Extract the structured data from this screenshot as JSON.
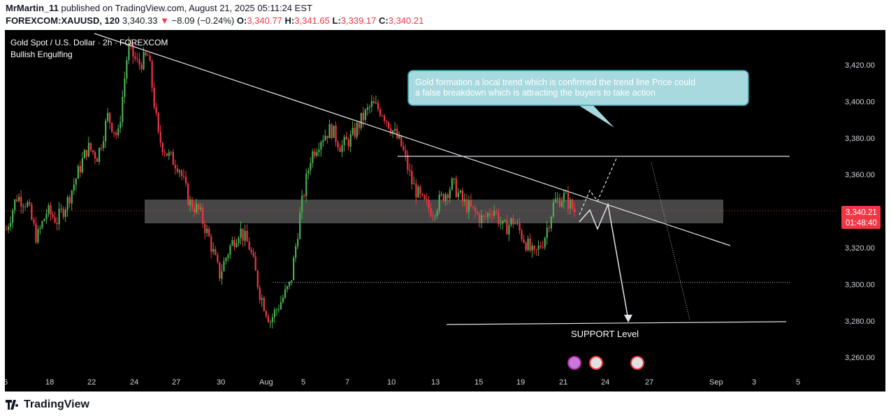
{
  "header": {
    "author": "MrMartin_11",
    "published": "published on TradingView.com, August 21, 2025 05:11:24 EST",
    "symbol": "FOREXCOM:XAUUSD, 120",
    "last": "3,340.33",
    "change_arrow": "▼",
    "change": "−8.09 (−0.24%)",
    "o_label": "O:",
    "o": "3,340.77",
    "h_label": "H:",
    "h": "3,341.65",
    "l_label": "L:",
    "l": "3,339.17",
    "c_label": "C:",
    "c": "3,340.21"
  },
  "chart_title": "Gold Spot / U.S. Dollar · 2h · FOREXCOM",
  "indicator": "Bullish Engulfing",
  "annotation": "Gold formation a local trend which is confirmed the trend line Price could\n a false breakdown which is attracting the buyers to take action",
  "support_label": "SUPPORT Level",
  "price_tag": "3,340.21",
  "countdown": "01:48:40",
  "footer": {
    "brand": "TradingView",
    "logo_icon": "tradingview-logo-icon"
  },
  "colors": {
    "up": "#4caf50",
    "down": "#f23645",
    "background": "#000000",
    "tag": "#f23645",
    "zone": "#5d5d5d"
  },
  "chart_data": {
    "type": "candlestick",
    "title": "Gold Spot / U.S. Dollar · 2h · FOREXCOM",
    "ylim": [
      3250,
      3440
    ],
    "y_ticks": [
      "3,260.00",
      "3,280.00",
      "3,300.00",
      "3,320.00",
      "3,340.00",
      "3,360.00",
      "3,380.00",
      "3,400.00",
      "3,420.00"
    ],
    "x_ticks": [
      "6",
      "18",
      "22",
      "24",
      "27",
      "30",
      "Aug",
      "5",
      "7",
      "10",
      "13",
      "15",
      "19",
      "21",
      "24",
      "27",
      "Sep",
      "3",
      "5"
    ],
    "price_path": [
      3330,
      3348,
      3345,
      3325,
      3340,
      3335,
      3345,
      3360,
      3375,
      3370,
      3392,
      3380,
      3430,
      3420,
      3425,
      3380,
      3370,
      3365,
      3345,
      3340,
      3325,
      3305,
      3320,
      3330,
      3320,
      3295,
      3280,
      3290,
      3300,
      3340,
      3370,
      3380,
      3385,
      3375,
      3380,
      3390,
      3398,
      3395,
      3385,
      3375,
      3355,
      3345,
      3340,
      3348,
      3355,
      3345,
      3340,
      3335,
      3342,
      3330,
      3335,
      3325,
      3315,
      3325,
      3345,
      3348,
      3340
    ],
    "resistance_level": 3370,
    "support_level": 3280,
    "dotted_level": 3301,
    "current_price": 3340.21,
    "zone": [
      3335,
      3348
    ],
    "trendline": [
      [
        3439,
        "Jul 18"
      ],
      [
        3322,
        "Aug 28"
      ]
    ]
  }
}
